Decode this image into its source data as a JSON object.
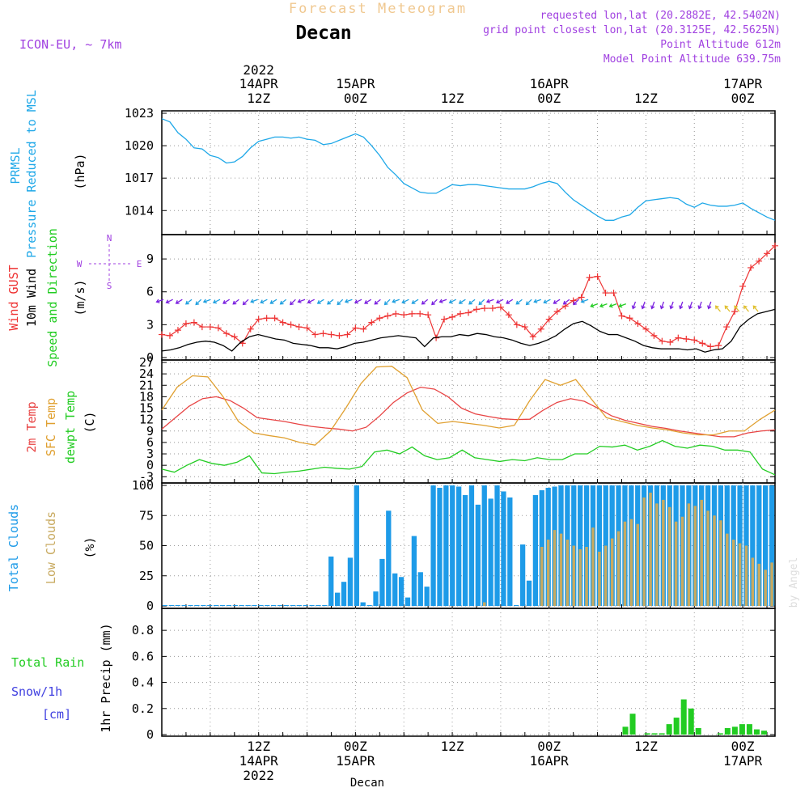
{
  "header": {
    "product_title": "Forecast Meteogram",
    "location": "Decan",
    "model": "ICON-EU, ~ 7km",
    "requested": "requested lon,lat (20.2882E, 42.5402N)",
    "gridpoint": "grid point closest lon,lat (20.3125E, 42.5625N)",
    "point_alt": "Point Altitude 612m",
    "model_alt": "Model Point Altitude 639.75m"
  },
  "footer": {
    "location": "Decan",
    "credit": "by Angel"
  },
  "axis_time": {
    "top_year": "2022",
    "ticks": [
      {
        "h": 12,
        "top": "14APR",
        "bot": "12Z"
      },
      {
        "h": 24,
        "top": "15APR",
        "bot": "00Z"
      },
      {
        "h": 36,
        "top": "",
        "bot": "12Z"
      },
      {
        "h": 48,
        "top": "16APR",
        "bot": "00Z"
      },
      {
        "h": 60,
        "top": "",
        "bot": "12Z"
      },
      {
        "h": 72,
        "top": "17APR",
        "bot": "00Z"
      }
    ],
    "bottom": [
      {
        "h": 12,
        "l1": "12Z",
        "l2": "14APR",
        "l3": "2022"
      },
      {
        "h": 24,
        "l1": "00Z",
        "l2": "15APR",
        "l3": ""
      },
      {
        "h": 36,
        "l1": "12Z",
        "l2": "",
        "l3": ""
      },
      {
        "h": 48,
        "l1": "00Z",
        "l2": "16APR",
        "l3": ""
      },
      {
        "h": 60,
        "l1": "12Z",
        "l2": "",
        "l3": ""
      },
      {
        "h": 72,
        "l1": "00Z",
        "l2": "17APR",
        "l3": ""
      }
    ]
  },
  "labels": {
    "pressure": [
      "PRMSL",
      "Pressure Reduced to MSL",
      "(hPa)"
    ],
    "wind": [
      "Wind GUST",
      "10m Wind",
      "Speed and Direction",
      "(m/s)"
    ],
    "compass": {
      "n": "N",
      "s": "S",
      "w": "W",
      "e": "E"
    },
    "temp": [
      "2m Temp",
      "SFC Temp",
      "dewpt Temp",
      "(C)"
    ],
    "clouds": [
      "Total Clouds",
      "Low Clouds",
      "(%)"
    ],
    "precip": [
      "Total  Rain",
      "Snow/1h",
      "[cm]",
      "1hr Precip (mm)"
    ]
  },
  "colors": {
    "pressure": "#1fa8e8",
    "gust": "#ee3333",
    "wind": "#000000",
    "temp": "#e84444",
    "sfc": "#e0a030",
    "dew": "#22cc22",
    "total_cloud": "#1e9be8",
    "low_cloud": "#c8aa60",
    "rain": "#22cc22",
    "header_tan": "#f0c890",
    "purple": "#a040e0",
    "snow": "#4040e0"
  },
  "chart_data": [
    {
      "type": "line",
      "title": "PRMSL Pressure Reduced to MSL",
      "ylabel": "(hPa)",
      "ylim": [
        1012,
        1023
      ],
      "yticks": [
        1014,
        1017,
        1020,
        1023
      ],
      "x_start": 0,
      "x_step": 1,
      "values": [
        1022.5,
        1022.2,
        1021.2,
        1020.6,
        1019.8,
        1019.7,
        1019.1,
        1018.9,
        1018.4,
        1018.5,
        1019.0,
        1019.8,
        1020.4,
        1020.6,
        1020.8,
        1020.8,
        1020.7,
        1020.8,
        1020.6,
        1020.5,
        1020.1,
        1020.2,
        1020.5,
        1020.8,
        1021.1,
        1020.8,
        1020.0,
        1019.1,
        1018.0,
        1017.3,
        1016.5,
        1016.1,
        1015.7,
        1015.6,
        1015.6,
        1016.0,
        1016.4,
        1016.3,
        1016.4,
        1016.4,
        1016.3,
        1016.2,
        1016.1,
        1016.0,
        1016.0,
        1016.0,
        1016.2,
        1016.5,
        1016.7,
        1016.5,
        1015.7,
        1015.0,
        1014.5,
        1014.0,
        1013.5,
        1013.1,
        1013.1,
        1013.4,
        1013.6,
        1014.3,
        1014.9,
        1015.0,
        1015.1,
        1015.2,
        1015.1,
        1014.6,
        1014.3,
        1014.7,
        1014.5,
        1014.4,
        1014.4,
        1014.5,
        1014.7,
        1014.2,
        1013.8,
        1013.4,
        1013.1
      ]
    },
    {
      "type": "line",
      "title": "Wind GUST / 10m Wind Speed and Direction",
      "ylabel": "(m/s)",
      "ylim": [
        0,
        11
      ],
      "yticks": [
        0,
        3,
        6,
        9
      ],
      "x_start": 0,
      "x_step": 1,
      "series": [
        {
          "name": "Wind GUST",
          "values": [
            2.1,
            2.0,
            2.5,
            3.1,
            3.2,
            2.8,
            2.8,
            2.7,
            2.2,
            1.9,
            1.3,
            2.6,
            3.5,
            3.6,
            3.6,
            3.2,
            3.0,
            2.8,
            2.7,
            2.1,
            2.2,
            2.1,
            2.0,
            2.1,
            2.7,
            2.6,
            3.2,
            3.6,
            3.8,
            4.0,
            3.9,
            4.0,
            4.0,
            3.9,
            1.8,
            3.5,
            3.7,
            4.0,
            4.1,
            4.4,
            4.5,
            4.5,
            4.6,
            3.9,
            3.0,
            2.8,
            1.9,
            2.6,
            3.5,
            4.2,
            4.7,
            5.2,
            5.5,
            7.3,
            7.4,
            5.9,
            5.9,
            3.8,
            3.6,
            3.1,
            2.6,
            2.0,
            1.5,
            1.4,
            1.8,
            1.7,
            1.6,
            1.3,
            1.0,
            1.1,
            2.8,
            4.2,
            6.5,
            8.2,
            8.8,
            9.5,
            10.2
          ]
        },
        {
          "name": "10m Wind",
          "values": [
            0.6,
            0.7,
            0.9,
            1.2,
            1.4,
            1.5,
            1.4,
            1.1,
            0.6,
            1.4,
            1.9,
            2.1,
            1.9,
            1.7,
            1.6,
            1.3,
            1.2,
            1.1,
            0.9,
            0.9,
            0.8,
            1.0,
            1.3,
            1.4,
            1.6,
            1.8,
            1.9,
            2.0,
            1.9,
            1.8,
            1.0,
            1.8,
            1.9,
            1.9,
            2.1,
            2.0,
            2.2,
            2.1,
            1.9,
            1.8,
            1.6,
            1.3,
            1.1,
            1.3,
            1.6,
            2.0,
            2.6,
            3.1,
            3.3,
            2.9,
            2.4,
            2.1,
            2.1,
            1.8,
            1.5,
            1.1,
            0.9,
            0.8,
            0.8,
            0.8,
            0.7,
            0.8,
            0.5,
            0.7,
            0.8,
            1.5,
            2.8,
            3.5,
            4.0,
            4.2,
            4.4
          ]
        }
      ],
      "direction_arrows": "shown along ~5 m/s row, mostly from west, turning near end"
    },
    {
      "type": "line",
      "title": "2m Temp / SFC Temp / dewpt Temp",
      "ylabel": "(C)",
      "ylim": [
        -4,
        27
      ],
      "yticks": [
        -3,
        0,
        3,
        6,
        9,
        12,
        15,
        18,
        21,
        24,
        27
      ],
      "x_start": 0,
      "x_step": 1,
      "series": [
        {
          "name": "2m Temp",
          "values": [
            9.5,
            12.5,
            15.5,
            17.5,
            18.0,
            17.0,
            15.0,
            12.5,
            12.0,
            11.5,
            10.8,
            10.2,
            9.8,
            9.5,
            9.0,
            10.0,
            13.0,
            16.5,
            19.0,
            20.5,
            20.0,
            18.0,
            15.0,
            13.5,
            12.8,
            12.2,
            12.0,
            12.1,
            14.5,
            16.5,
            17.5,
            16.8,
            15.0,
            13.0,
            11.8,
            11.0,
            10.2,
            9.7,
            9.0,
            8.5,
            8.0,
            7.5,
            7.5,
            8.5,
            9.0,
            9.3
          ]
        },
        {
          "name": "SFC Temp",
          "values": [
            14.5,
            20.5,
            23.5,
            23.2,
            18.0,
            11.5,
            8.5,
            7.8,
            7.2,
            6.0,
            5.3,
            9.0,
            15.0,
            21.5,
            25.8,
            26.0,
            23.0,
            14.5,
            11.0,
            11.5,
            11.0,
            10.5,
            9.8,
            10.5,
            17.0,
            22.5,
            21.0,
            22.5,
            17.5,
            12.5,
            11.5,
            10.5,
            9.8,
            9.3,
            8.5,
            8.0,
            8.0,
            9.0,
            9.0,
            12.0,
            14.5
          ]
        },
        {
          "name": "dewpt Temp",
          "values": [
            -1.0,
            -1.8,
            0.0,
            1.5,
            0.5,
            0.0,
            0.8,
            2.5,
            -2.0,
            -2.2,
            -1.8,
            -1.5,
            -1.0,
            -0.5,
            -0.8,
            -1.0,
            -0.3,
            3.5,
            4.0,
            3.0,
            4.8,
            2.5,
            1.5,
            2.0,
            4.0,
            2.0,
            1.5,
            1.0,
            1.5,
            1.2,
            2.0,
            1.5,
            1.5,
            3.0,
            3.0,
            5.0,
            4.8,
            5.3,
            4.0,
            5.0,
            6.5,
            5.0,
            4.5,
            5.3,
            5.0,
            4.0,
            4.0,
            3.5,
            -1.0,
            -2.5
          ]
        }
      ]
    },
    {
      "type": "bar",
      "title": "Total Clouds / Low Clouds",
      "ylabel": "(%)",
      "ylim": [
        0,
        100
      ],
      "yticks": [
        0,
        25,
        50,
        75,
        100
      ],
      "x_start": 0,
      "x_step": 1,
      "series": [
        {
          "name": "Total Clouds",
          "values": [
            0,
            0,
            0,
            0,
            0,
            0,
            0,
            0,
            0,
            0,
            0,
            0,
            0,
            0,
            0,
            0,
            0,
            0,
            0,
            0,
            0,
            0,
            0,
            0,
            0,
            0,
            41,
            11,
            20,
            40,
            100,
            3,
            0,
            12,
            39,
            79,
            27,
            24,
            7,
            58,
            28,
            16,
            100,
            98,
            100,
            100,
            99,
            92,
            100,
            84,
            100,
            89,
            100,
            95,
            90,
            0,
            51,
            21,
            92,
            96,
            98,
            99,
            100,
            100,
            100,
            100,
            100,
            100,
            100,
            100,
            100,
            100,
            100,
            100,
            100,
            100,
            100,
            100,
            100,
            100,
            100,
            100,
            100,
            100,
            100,
            100,
            100,
            100,
            100,
            100,
            100,
            100,
            100,
            100,
            100,
            100
          ]
        },
        {
          "name": "Low Clouds",
          "values": [
            0,
            0,
            0,
            0,
            0,
            0,
            0,
            0,
            0,
            0,
            0,
            0,
            0,
            0,
            0,
            0,
            0,
            0,
            0,
            0,
            0,
            0,
            0,
            0,
            0,
            0,
            0,
            0,
            0,
            0,
            0,
            0,
            0,
            0,
            0,
            0,
            0,
            0,
            0,
            0,
            0,
            0,
            0,
            0,
            0,
            0,
            0,
            0,
            0,
            0,
            3,
            0,
            0,
            0,
            0,
            0,
            0,
            0,
            0,
            49,
            55,
            63,
            60,
            55,
            50,
            47,
            49,
            65,
            45,
            50,
            56,
            62,
            70,
            72,
            68,
            90,
            94,
            85,
            88,
            82,
            70,
            74,
            85,
            83,
            88,
            79,
            75,
            71,
            60,
            55,
            52,
            50,
            40,
            35,
            30,
            36
          ]
        }
      ]
    },
    {
      "type": "bar",
      "title": "1hr Precip (mm)",
      "ylabel": "1hr Precip (mm)",
      "ylim": [
        0,
        0.95
      ],
      "yticks": [
        0,
        0.2,
        0.4,
        0.6,
        0.8
      ],
      "x_start": 0,
      "x_step": 1,
      "series": [
        {
          "name": "Total Rain",
          "values": [
            0,
            0,
            0,
            0,
            0,
            0,
            0,
            0,
            0,
            0,
            0,
            0,
            0,
            0,
            0,
            0,
            0,
            0,
            0,
            0,
            0,
            0,
            0,
            0,
            0,
            0,
            0,
            0,
            0,
            0,
            0,
            0,
            0,
            0,
            0,
            0,
            0,
            0,
            0,
            0,
            0,
            0,
            0,
            0,
            0,
            0,
            0,
            0,
            0,
            0,
            0,
            0,
            0,
            0,
            0,
            0,
            0,
            0,
            0,
            0,
            0,
            0,
            0,
            0.06,
            0.16,
            0,
            0.01,
            0.01,
            0.01,
            0.08,
            0.13,
            0.27,
            0.2,
            0.05,
            0,
            0,
            0.01,
            0.05,
            0.06,
            0.08,
            0.08,
            0.04,
            0.03,
            0
          ]
        }
      ]
    }
  ]
}
